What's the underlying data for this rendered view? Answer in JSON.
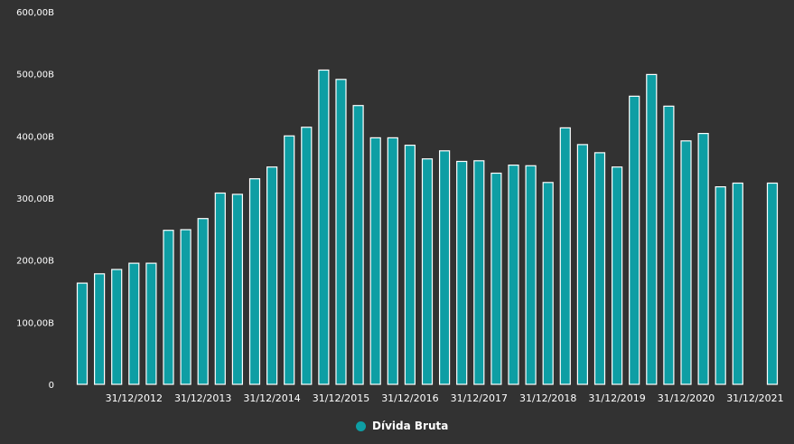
{
  "colors": {
    "background": "#323232",
    "bar_fill": "#0e9ea4",
    "bar_stroke": "#ffffff",
    "text": "#ffffff"
  },
  "legend": {
    "label": "Dívida Bruta",
    "icon": "circle-marker-icon"
  },
  "chart_data": {
    "type": "bar",
    "ylim": [
      0,
      600
    ],
    "yticks": [
      0,
      100,
      200,
      300,
      400,
      500,
      600
    ],
    "ytick_labels": [
      "0",
      "100,00B",
      "200,00B",
      "300,00B",
      "400,00B",
      "500,00B",
      "600,00B"
    ],
    "xtick_labels": [
      "31/12/2012",
      "31/12/2013",
      "31/12/2014",
      "31/12/2015",
      "31/12/2016",
      "31/12/2017",
      "31/12/2018",
      "31/12/2019",
      "31/12/2020",
      "31/12/2021"
    ],
    "grid": false,
    "legend_position": "bottom-center",
    "series": [
      {
        "name": "Dívida Bruta",
        "values": [
          163,
          178,
          185,
          195,
          195,
          248,
          249,
          267,
          308,
          306,
          331,
          350,
          400,
          414,
          506,
          491,
          449,
          397,
          397,
          385,
          363,
          376,
          359,
          360,
          340,
          353,
          352,
          325,
          413,
          386,
          373,
          350,
          464,
          499,
          448,
          392,
          404,
          318,
          324,
          null,
          324
        ]
      }
    ]
  }
}
